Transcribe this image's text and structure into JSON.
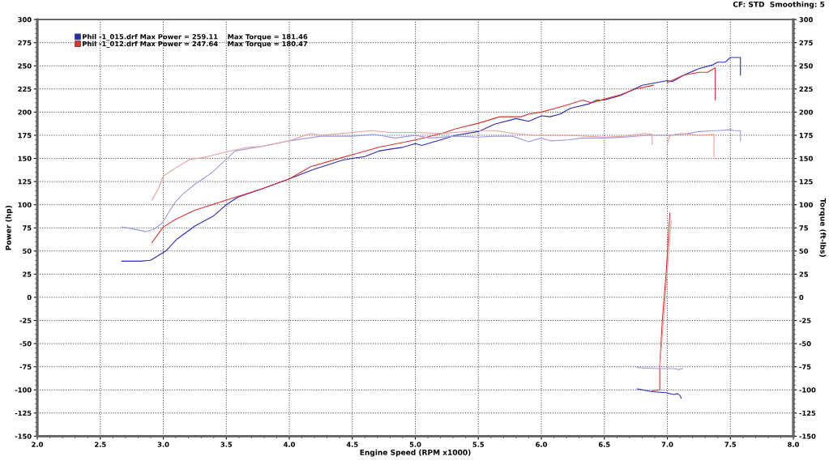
{
  "chart_data": {
    "type": "line",
    "xlabel": "Engine Speed (RPM x1000)",
    "ylabel": "Power (hp)",
    "y2label": "Torque (ft-lbs)",
    "annotations": [
      "CF: STD  Smoothing: 5"
    ],
    "xlim": [
      2.0,
      8.0
    ],
    "xticks": [
      {
        "value": 2.0,
        "label": "2.0"
      },
      2.5,
      {
        "value": 3.0,
        "label": "3.0"
      },
      3.5,
      {
        "value": 4.0,
        "label": "4.0"
      },
      4.5,
      {
        "value": 5.0,
        "label": "5.0"
      },
      5.5,
      {
        "value": 6.0,
        "label": "6.0"
      },
      6.5,
      {
        "value": 7.0,
        "label": "7.0"
      },
      7.5,
      {
        "value": 8.0,
        "label": "8.0"
      }
    ],
    "ylim": [
      -150,
      300
    ],
    "yticks": [
      -150,
      -125,
      -100,
      -75,
      -50,
      -25,
      0,
      25,
      50,
      75,
      100,
      125,
      150,
      175,
      200,
      225,
      250,
      275,
      300
    ],
    "y2lim": [
      -150,
      300
    ],
    "y2ticks": [
      -150,
      -125,
      -100,
      -75,
      -50,
      -25,
      0,
      25,
      50,
      75,
      100,
      125,
      150,
      175,
      200,
      225,
      250,
      275,
      300
    ],
    "grid": true,
    "legend": "top left",
    "series": [
      {
        "name": "Phil -1_015.drf Max Power = 259.11    Max Torque = 181.46",
        "color": "#2b2bb8",
        "x": [
          2.67,
          2.82,
          2.9,
          3.02,
          3.11,
          3.25,
          3.4,
          3.5,
          3.59,
          3.78,
          4.0,
          4.19,
          4.42,
          4.5,
          4.6,
          4.71,
          4.8,
          4.9,
          5.0,
          5.05,
          5.15,
          5.32,
          5.5,
          5.63,
          5.8,
          5.9,
          6.0,
          6.07,
          6.15,
          6.23,
          6.38,
          6.44,
          6.5,
          6.63,
          6.8,
          6.88,
          7.0,
          7.04,
          7.13,
          7.25,
          7.36,
          7.4,
          7.46,
          7.5,
          7.53,
          7.58,
          7.58
        ],
        "values": [
          39,
          39,
          40,
          50,
          63,
          77,
          88,
          100,
          108,
          117,
          128,
          138,
          148,
          150,
          152,
          158,
          160,
          162,
          166,
          164,
          168,
          175,
          179,
          187,
          193,
          190,
          196,
          195,
          198,
          204,
          209,
          213,
          213,
          218,
          229,
          231,
          234,
          233,
          240,
          247,
          251,
          254,
          254,
          259,
          259,
          259,
          240
        ]
      },
      {
        "color": "#2b2bb8",
        "x": [
          6.76,
          6.88,
          6.99,
          7.05,
          7.08,
          7.1,
          7.11
        ],
        "values": [
          -99,
          -102,
          -103,
          -105,
          -104,
          -106,
          -109
        ]
      },
      {
        "color": "#9c9ce2",
        "axis": "y2",
        "x": [
          2.67,
          2.75,
          2.86,
          2.92,
          2.99,
          3.09,
          3.15,
          3.25,
          3.38,
          3.5,
          3.57,
          3.78,
          4.0,
          4.25,
          4.38,
          4.5,
          4.67,
          4.84,
          5.0,
          5.11,
          5.32,
          5.5,
          5.63,
          5.77,
          5.9,
          6.0,
          6.07,
          6.21,
          6.32,
          6.5,
          6.67,
          6.84,
          7.0,
          7.13,
          7.25,
          7.38,
          7.5,
          7.53,
          7.58,
          7.58
        ],
        "values": [
          76,
          74,
          71,
          73,
          80,
          102,
          111,
          122,
          134,
          149,
          158,
          163,
          169,
          174,
          174,
          174,
          176,
          172,
          175,
          172,
          174,
          173,
          174,
          174,
          168,
          172,
          169,
          170,
          172,
          172,
          173,
          175,
          175,
          176,
          179,
          180,
          181,
          180,
          180,
          169
        ]
      },
      {
        "color": "#9c9ce2",
        "axis": "y2",
        "x": [
          6.76,
          6.92,
          7.05,
          7.09,
          7.12
        ],
        "values": [
          -76,
          -77,
          -77,
          -78,
          -77
        ]
      },
      {
        "name": "Phil -1_012.drf Max Power = 247.64    Max Torque = 180.47",
        "color": "#e03030",
        "x": [
          2.91,
          3.0,
          3.11,
          3.25,
          3.5,
          3.78,
          4.0,
          4.17,
          4.42,
          4.5,
          4.71,
          5.0,
          5.21,
          5.32,
          5.5,
          5.67,
          5.84,
          5.9,
          6.0,
          6.11,
          6.21,
          6.33,
          6.4,
          6.5,
          6.63,
          6.75,
          6.89
        ],
        "values": [
          59,
          76,
          85,
          94,
          105,
          117,
          128,
          141,
          151,
          154,
          162,
          170,
          177,
          182,
          188,
          195,
          195,
          198,
          200,
          204,
          208,
          213,
          210,
          214,
          219,
          225,
          229
        ]
      },
      {
        "color": "#e03030",
        "x": [
          6.88,
          6.94,
          6.94,
          6.96,
          6.99,
          7.02
        ],
        "values": [
          -101,
          -100,
          -73,
          -25,
          26,
          91
        ]
      },
      {
        "color": "#e03030",
        "x": [
          7.0,
          7.13,
          7.25,
          7.32,
          7.38,
          7.38
        ],
        "values": [
          232,
          240,
          243,
          243,
          248,
          213
        ]
      },
      {
        "color": "#eb9c9c",
        "axis": "y2",
        "x": [
          2.91,
          2.96,
          3.0,
          3.09,
          3.21,
          3.32,
          3.5,
          3.67,
          3.78,
          4.0,
          4.17,
          4.25,
          4.5,
          4.65,
          4.8,
          5.0,
          5.21,
          5.5,
          5.63,
          5.78,
          5.94,
          6.0,
          6.21,
          6.5,
          6.67,
          6.82,
          6.88,
          6.88
        ],
        "values": [
          105,
          117,
          131,
          139,
          149,
          151,
          157,
          162,
          163,
          169,
          177,
          175,
          178,
          180,
          178,
          178,
          177,
          180,
          180,
          177,
          175,
          175,
          175,
          173,
          174,
          177,
          176,
          165
        ]
      },
      {
        "color": "#eb9c9c",
        "axis": "y2",
        "x": [
          6.94,
          7.03
        ],
        "values": [
          -76,
          82
        ]
      },
      {
        "color": "#eb9c9c",
        "axis": "y2",
        "x": [
          7.0,
          7.02,
          7.11,
          7.19,
          7.25,
          7.37,
          7.37
        ],
        "values": [
          166,
          175,
          177,
          176,
          175,
          176,
          152
        ]
      }
    ]
  }
}
